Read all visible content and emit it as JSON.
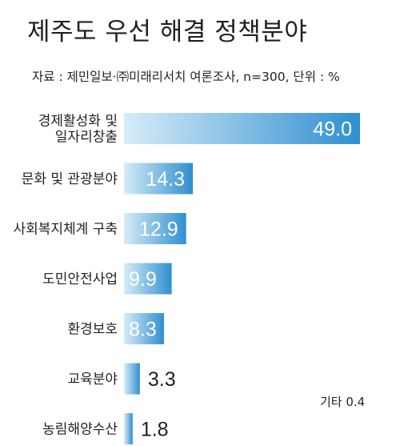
{
  "chart_data": {
    "type": "bar",
    "orientation": "horizontal",
    "title": "제주도 우선 해결 정책분야",
    "source": "자료 : 제민일보·㈜미래리서치 여론조사, n=300, 단위 : %",
    "categories": [
      [
        "경제활성화 및",
        "일자리창출"
      ],
      [
        "문화 및 관광분야"
      ],
      [
        "사회복지체계 구축"
      ],
      [
        "도민안전사업"
      ],
      [
        "환경보호"
      ],
      [
        "교육분야"
      ],
      [
        "농림해양수산"
      ]
    ],
    "values": [
      49.0,
      14.3,
      12.9,
      9.9,
      8.3,
      3.3,
      1.8
    ],
    "value_labels": [
      "49.0",
      "14.3",
      "12.9",
      "9.9",
      "8.3",
      "3.3",
      "1.8"
    ],
    "other_label": "기타 0.4",
    "bar_gradient": [
      "#d6ecf8",
      "#2f8fd0"
    ],
    "value_label_color_inside": "#ffffff",
    "value_label_color_outside": "#231f20",
    "grid": false,
    "legend": "none"
  }
}
